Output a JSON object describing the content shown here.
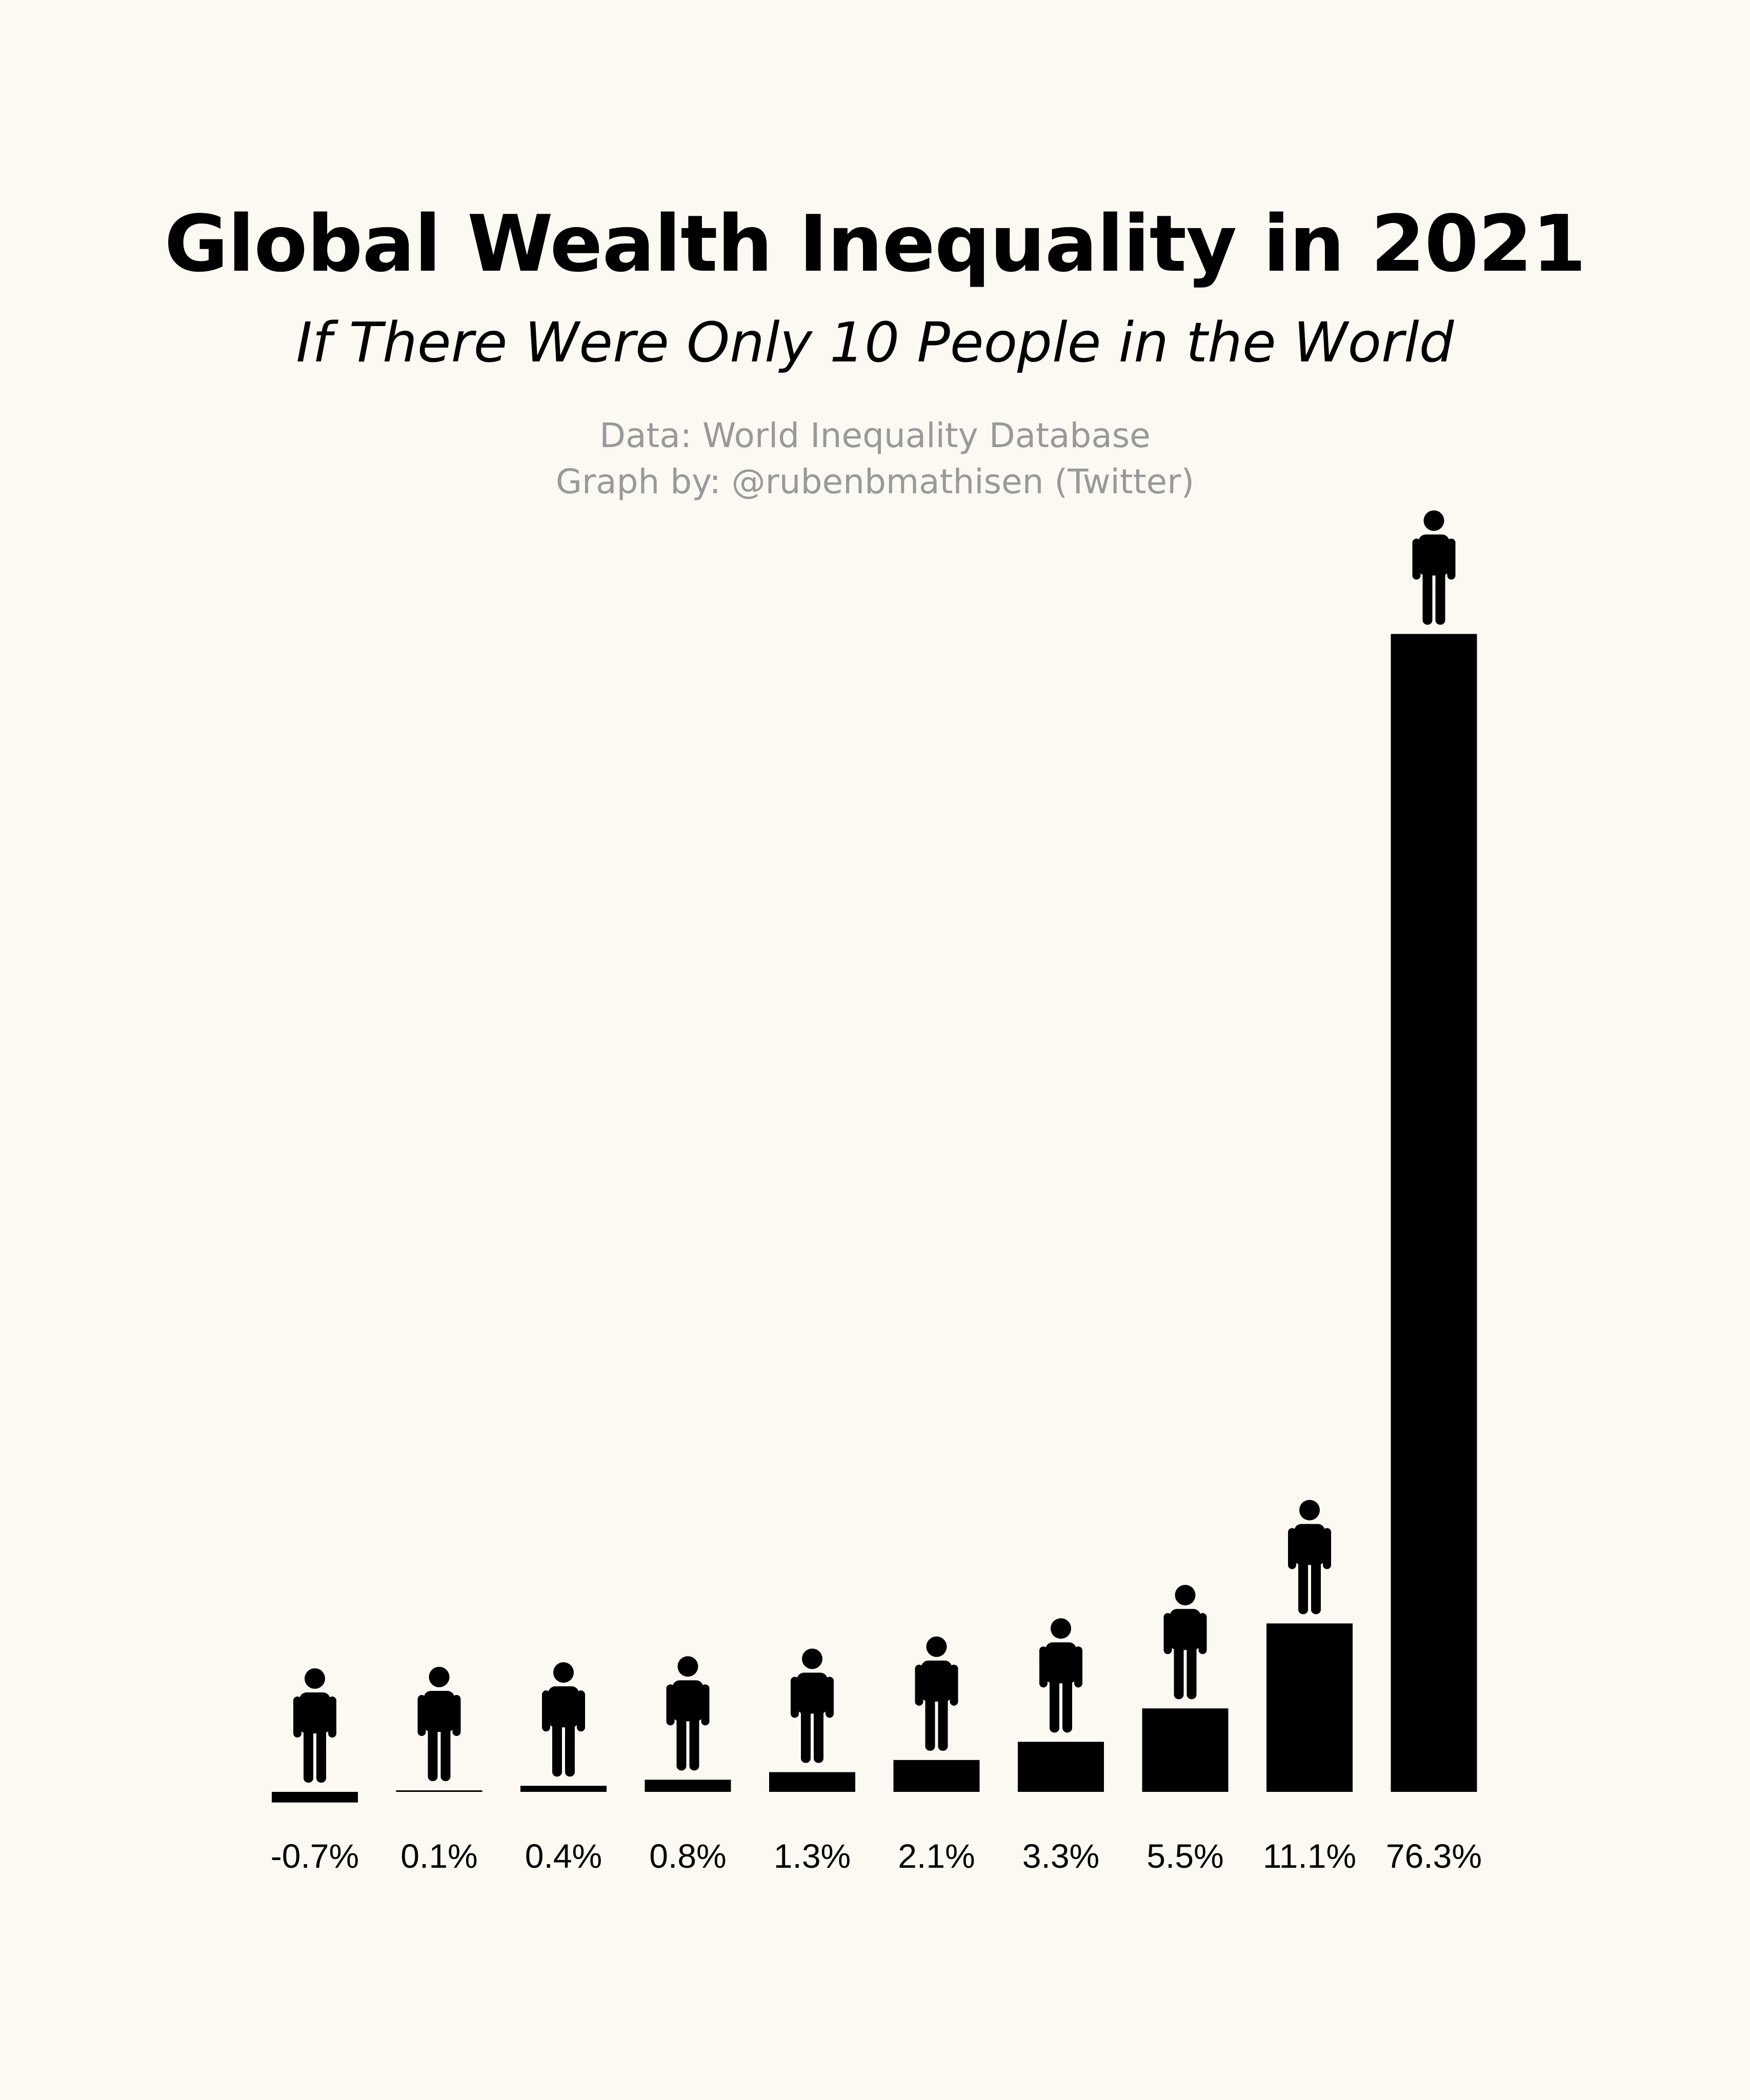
{
  "title": "Global Wealth Inequality in 2021",
  "subtitle": "If There Were Only 10 People in the World",
  "source": {
    "line1": "Data: World Inequality Database",
    "line2": "Graph by: @rubenbmathisen (Twitter)"
  },
  "colors": {
    "background": "#FCF9F2",
    "bar": "#000000",
    "text": "#000000",
    "source_text": "#999999"
  },
  "icon": "person-icon",
  "chart_data": {
    "type": "bar",
    "categories": [
      "-0.7%",
      "0.1%",
      "0.4%",
      "0.8%",
      "1.3%",
      "2.1%",
      "3.3%",
      "5.5%",
      "11.1%",
      "76.3%"
    ],
    "values": [
      -0.7,
      0.1,
      0.4,
      0.8,
      1.3,
      2.1,
      3.3,
      5.5,
      11.1,
      76.3
    ],
    "title": "Global Wealth Inequality in 2021",
    "subtitle": "If There Were Only 10 People in the World",
    "xlabel": "",
    "ylabel": "",
    "ylim": [
      -0.7,
      76.3
    ],
    "grid": false,
    "legend": "none"
  }
}
